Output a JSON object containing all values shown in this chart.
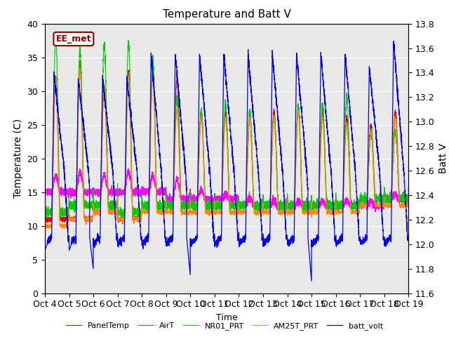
{
  "title": "Temperature and Batt V",
  "xlabel": "Time",
  "ylabel_left": "Temperature (C)",
  "ylabel_right": "Batt V",
  "annotation": "EE_met",
  "x_tick_labels": [
    "Oct 4",
    "Oct 5",
    "Oct 6",
    "Oct 7",
    "Oct 8",
    "Oct 9",
    "Oct 10",
    "Oct 11",
    "Oct 12",
    "Oct 13",
    "Oct 14",
    "Oct 15",
    "Oct 16",
    "Oct 17",
    "Oct 18",
    "Oct 19"
  ],
  "ylim_left": [
    0,
    40
  ],
  "ylim_right": [
    11.6,
    13.8
  ],
  "legend": [
    "PanelTemp",
    "AirT",
    "NR01_PRT",
    "AM25T_PRT",
    "batt_volt"
  ],
  "legend_colors": [
    "#dd0000",
    "#ff00ff",
    "#00cc00",
    "#ff8800",
    "#0000ee"
  ],
  "background_color": "#e8e8e8",
  "n_days": 15,
  "pts_per_day": 288
}
